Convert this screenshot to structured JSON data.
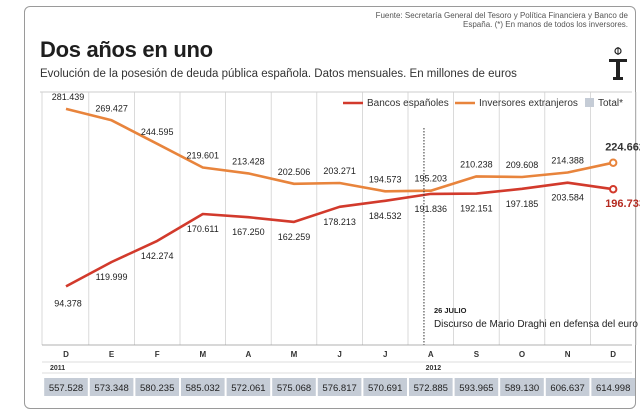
{
  "source": "Fuente: Secretaría General del Tesoro y Política Financiera y Banco de España. (*) En manos de todos los inversores.",
  "title": "Dos años en uno",
  "subtitle": "Evolución de la posesión de deuda pública española. Datos mensuales. En millones de euros",
  "chart_data": {
    "type": "line",
    "categories": [
      "D",
      "E",
      "F",
      "M",
      "A",
      "M",
      "J",
      "J",
      "A",
      "S",
      "O",
      "N",
      "D"
    ],
    "years": [
      {
        "label": "2011",
        "start_index": 0
      },
      {
        "label": "2012",
        "start_index": 1
      }
    ],
    "series": [
      {
        "name": "Bancos españoles",
        "color": "#d23a2c",
        "values": [
          94.378,
          119.999,
          142.274,
          170.611,
          167.25,
          162.259,
          178.213,
          184.532,
          191.836,
          192.151,
          197.185,
          203.584,
          196.733
        ],
        "labels": [
          "94.378",
          "119.999",
          "142.274",
          "170.611",
          "167.250",
          "162.259",
          "178.213",
          "184.532",
          "191.836",
          "192.151",
          "197.185",
          "203.584",
          "196.733"
        ]
      },
      {
        "name": "Inversores extranjeros",
        "color": "#e8843c",
        "values": [
          281.439,
          269.427,
          244.595,
          219.601,
          213.428,
          202.506,
          203.271,
          194.573,
          195.203,
          210.238,
          209.608,
          214.388,
          224.662
        ],
        "labels": [
          "281.439",
          "269.427",
          "244.595",
          "219.601",
          "213.428",
          "202.506",
          "203.271",
          "194.573",
          "195.203",
          "210.238",
          "209.608",
          "214.388",
          "224.662"
        ]
      }
    ],
    "totals_label": "Total*",
    "totals_color": "#c5ccd6",
    "totals": [
      "557.528",
      "573.348",
      "580.235",
      "585.032",
      "572.061",
      "575.068",
      "576.817",
      "570.691",
      "572.885",
      "593.965",
      "589.130",
      "606.637",
      "614.998"
    ],
    "annotation": {
      "date": "26 JULIO",
      "text": "Discurso de Mario Draghi en defensa del euro",
      "position_index": 7.85
    },
    "ylim": [
      80,
      295
    ],
    "grid": "vertical"
  }
}
